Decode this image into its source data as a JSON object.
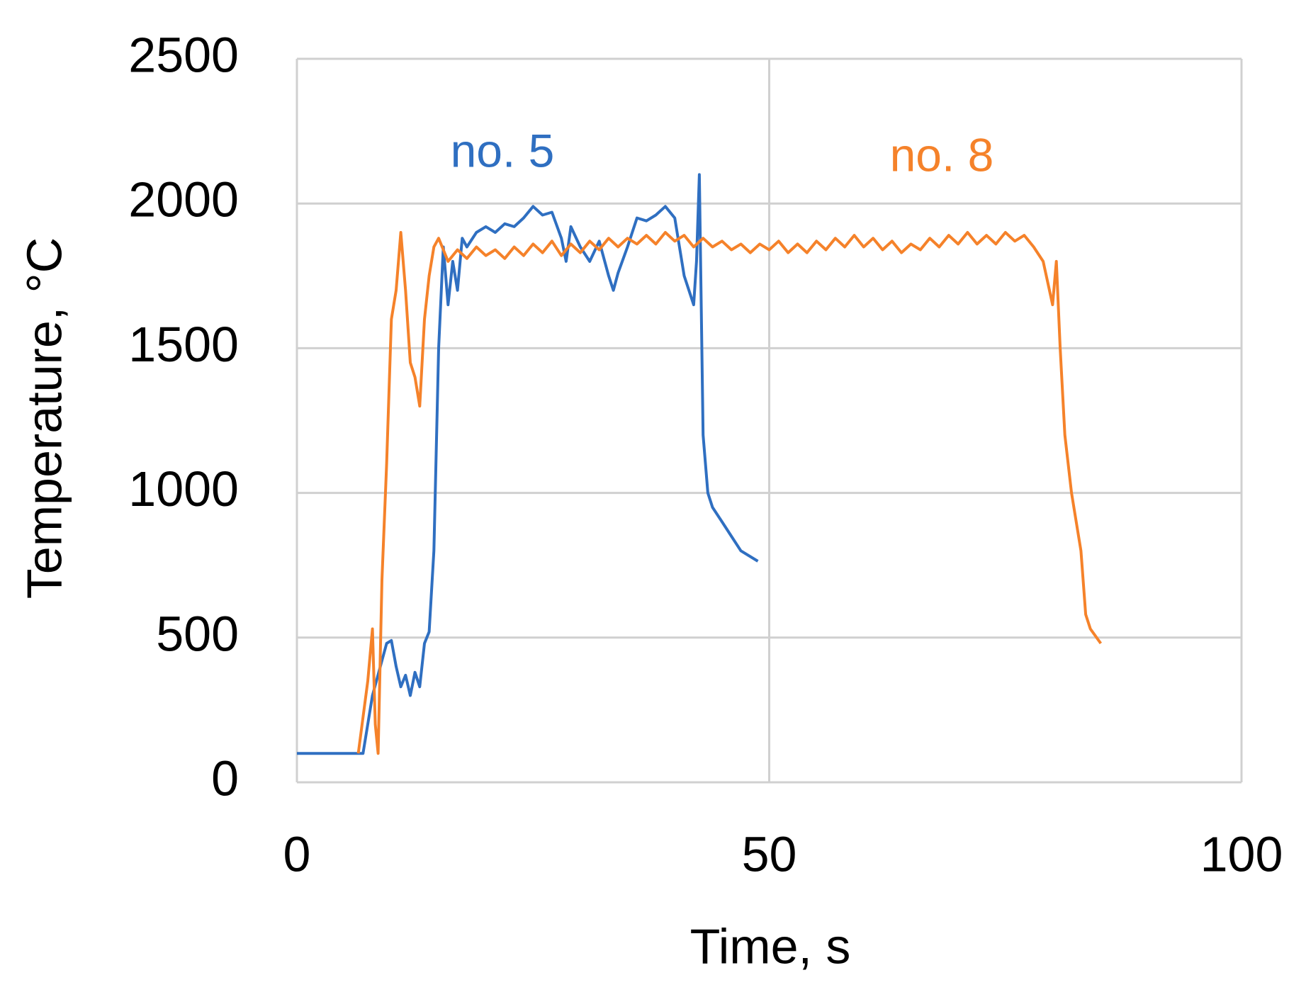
{
  "chart_data": {
    "type": "line",
    "xlabel": "Time, s",
    "ylabel": "Temperature, °C",
    "xlim": [
      0,
      100
    ],
    "xticks": [
      0,
      50,
      100
    ],
    "ylim": [
      0,
      2500
    ],
    "yticks": [
      0,
      500,
      1000,
      1500,
      2000,
      2500
    ],
    "grid": true,
    "series": [
      {
        "name": "no. 5",
        "color": "#2f6fc1",
        "x": [
          0,
          7,
          8,
          9.5,
          10,
          10.5,
          11,
          11.5,
          12,
          12.5,
          13,
          13.5,
          14,
          14.5,
          15,
          15.5,
          16,
          16.5,
          17,
          17.5,
          18,
          19,
          20,
          21,
          22,
          23,
          24,
          25,
          26,
          27,
          28,
          28.5,
          29,
          30,
          31,
          32,
          33,
          33.5,
          34,
          35,
          35.5,
          36,
          37,
          38,
          39,
          40,
          41,
          42,
          42.3,
          42.6,
          43,
          43.5,
          44,
          45,
          46,
          47,
          48.8
        ],
        "values": [
          100,
          100,
          300,
          480,
          490,
          400,
          330,
          370,
          300,
          380,
          330,
          480,
          520,
          800,
          1500,
          1850,
          1650,
          1800,
          1700,
          1880,
          1850,
          1900,
          1920,
          1900,
          1930,
          1920,
          1950,
          1990,
          1960,
          1970,
          1880,
          1800,
          1920,
          1850,
          1800,
          1870,
          1750,
          1700,
          1760,
          1850,
          1900,
          1950,
          1940,
          1960,
          1990,
          1950,
          1750,
          1650,
          1800,
          2100,
          1200,
          1000,
          950,
          900,
          850,
          800,
          764
        ]
      },
      {
        "name": "no. 8",
        "color": "#f5822a",
        "x": [
          6.5,
          7.5,
          8,
          8.3,
          8.6,
          9,
          9.5,
          10,
          10.5,
          11,
          11.5,
          12,
          12.5,
          13,
          13.5,
          14,
          14.5,
          15,
          16,
          17,
          18,
          19,
          20,
          21,
          22,
          23,
          24,
          25,
          26,
          27,
          28,
          29,
          30,
          31,
          32,
          33,
          34,
          35,
          36,
          37,
          38,
          39,
          40,
          41,
          42,
          43,
          44,
          45,
          46,
          47,
          48,
          49,
          50,
          51,
          52,
          53,
          54,
          55,
          56,
          57,
          58,
          59,
          60,
          61,
          62,
          63,
          64,
          65,
          66,
          67,
          68,
          69,
          70,
          71,
          72,
          73,
          74,
          75,
          76,
          77,
          78,
          79,
          80,
          80.4,
          80.8,
          81.3,
          82,
          83,
          83.5,
          84,
          85.1
        ],
        "values": [
          100,
          350,
          530,
          200,
          100,
          700,
          1100,
          1600,
          1700,
          1900,
          1700,
          1450,
          1400,
          1300,
          1600,
          1750,
          1850,
          1880,
          1800,
          1840,
          1810,
          1850,
          1820,
          1840,
          1810,
          1850,
          1820,
          1860,
          1830,
          1870,
          1820,
          1860,
          1830,
          1870,
          1840,
          1880,
          1850,
          1880,
          1860,
          1890,
          1860,
          1900,
          1870,
          1890,
          1850,
          1880,
          1850,
          1870,
          1840,
          1860,
          1830,
          1860,
          1840,
          1870,
          1830,
          1860,
          1830,
          1870,
          1840,
          1880,
          1850,
          1890,
          1850,
          1880,
          1840,
          1870,
          1830,
          1860,
          1840,
          1880,
          1850,
          1890,
          1860,
          1900,
          1860,
          1890,
          1860,
          1900,
          1870,
          1890,
          1850,
          1800,
          1650,
          1800,
          1500,
          1200,
          1000,
          800,
          580,
          530,
          480
        ]
      }
    ]
  }
}
